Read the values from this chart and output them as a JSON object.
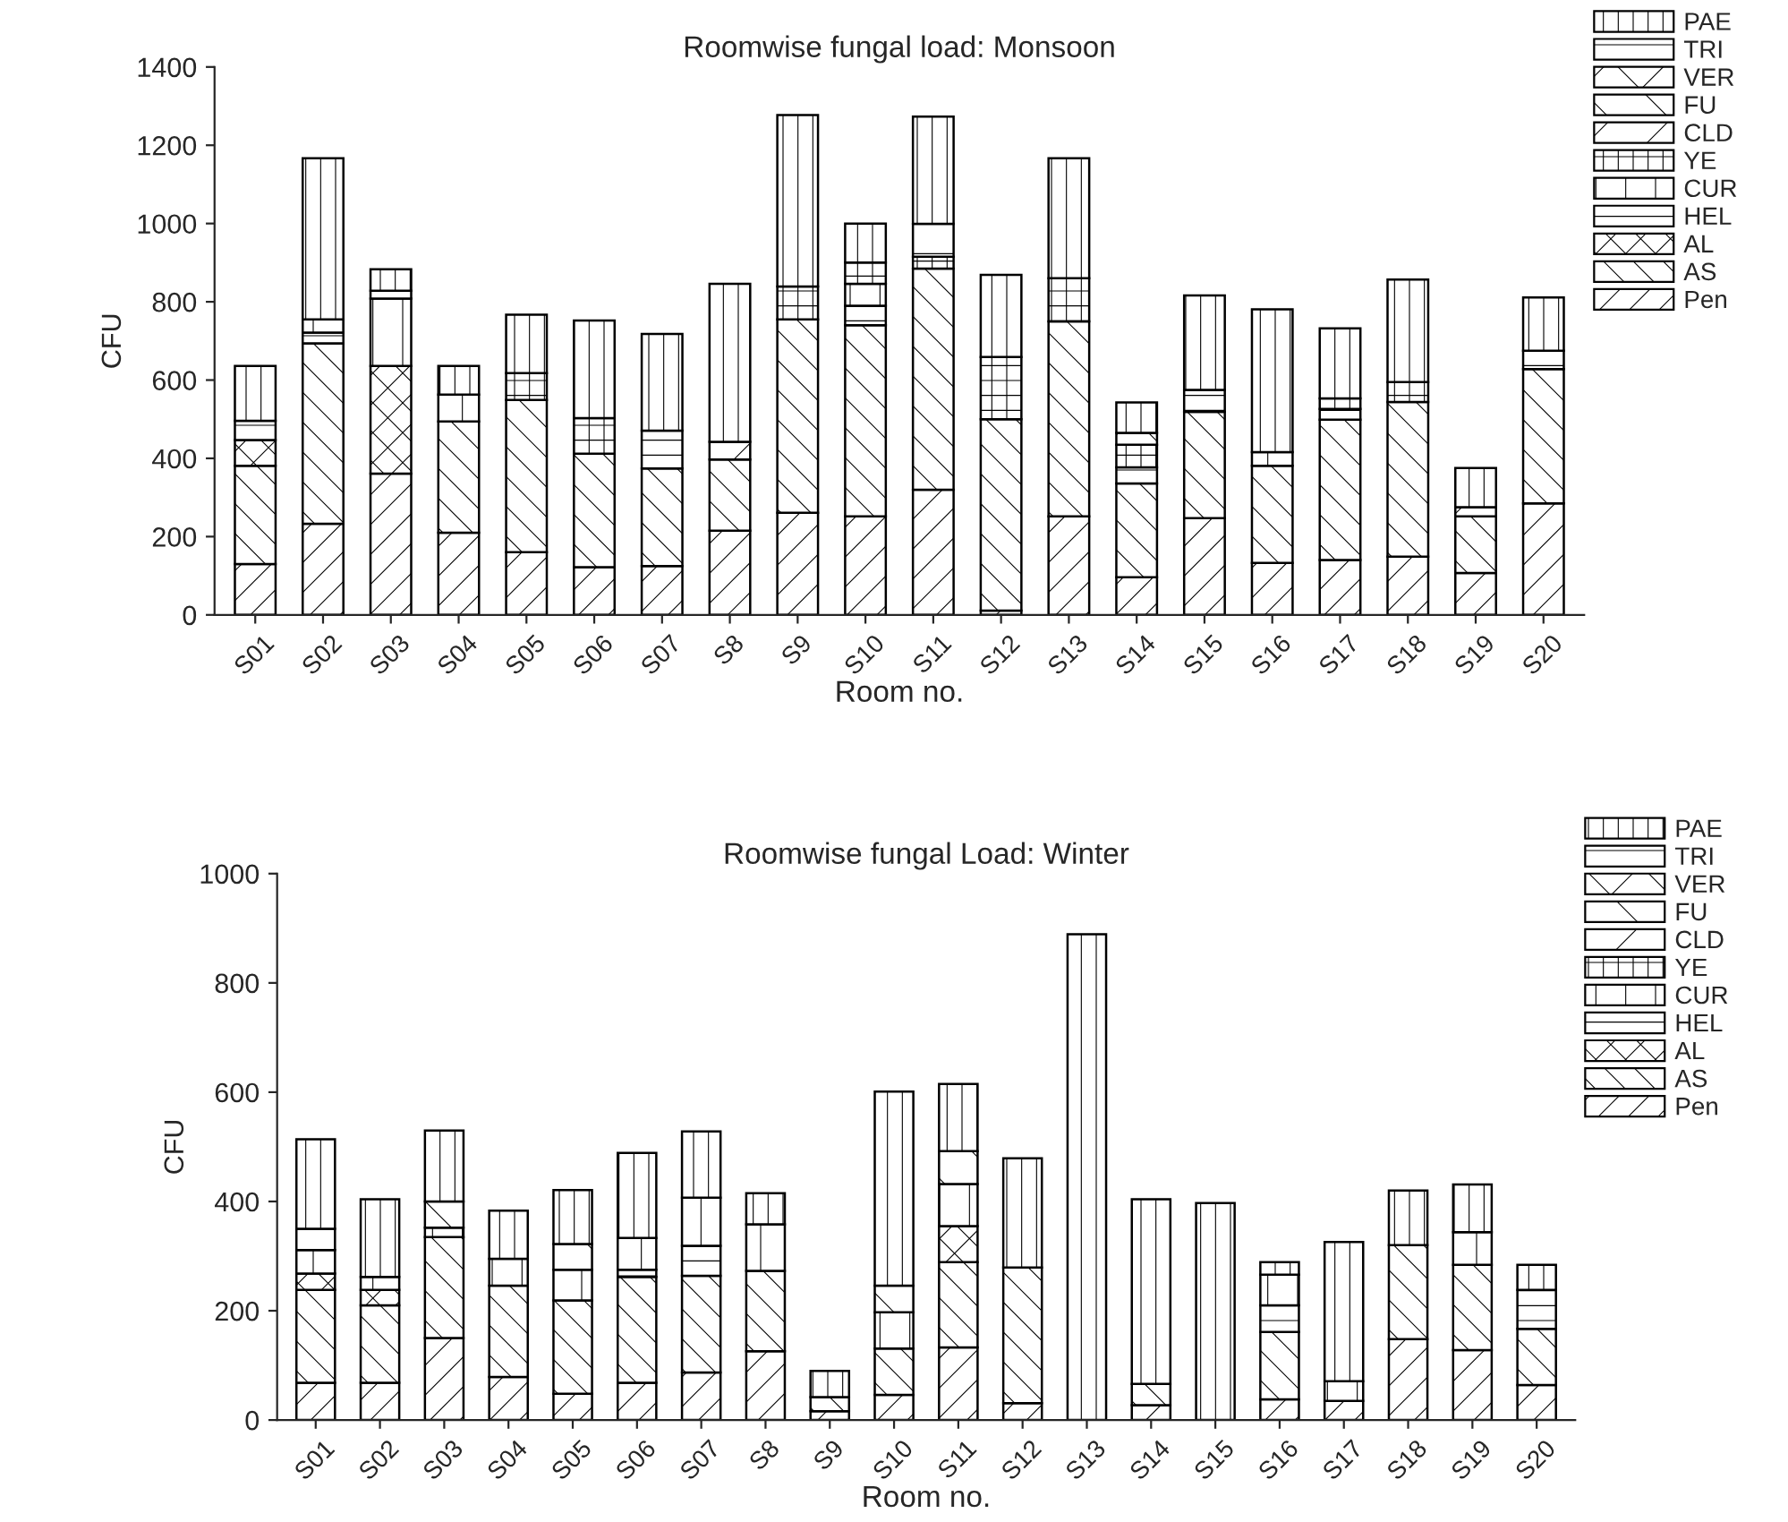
{
  "chart_data": [
    {
      "type": "bar",
      "stacked": true,
      "title": "Roomwise fungal load: Monsoon",
      "xlabel": "Room no.",
      "ylabel": "CFU",
      "legend": "top right",
      "grid": false,
      "categories": [
        "S01",
        "S02",
        "S03",
        "S04",
        "S05",
        "S06",
        "S07",
        "S8",
        "S9",
        "S10",
        "S11",
        "S12",
        "S13",
        "S14",
        "S15",
        "S16",
        "S17",
        "S18",
        "S19",
        "S20"
      ],
      "ylim": [
        0,
        1400
      ],
      "yticks": [
        0,
        200,
        400,
        600,
        800,
        1000,
        1200,
        1400
      ],
      "series": [
        {
          "name": "Pen",
          "color": "#000000",
          "values": [
            130,
            233,
            361,
            210,
            160,
            122,
            125,
            215,
            261,
            252,
            320,
            11,
            252,
            96,
            247,
            133,
            140,
            149,
            107,
            285
          ]
        },
        {
          "name": "AS",
          "color": "#000000",
          "values": [
            251,
            461,
            null,
            284,
            389,
            290,
            249,
            182,
            494,
            488,
            565,
            489,
            498,
            240,
            272,
            248,
            359,
            395,
            145,
            343
          ]
        },
        {
          "name": "AL",
          "color": "#000000",
          "values": [
            66,
            null,
            275,
            null,
            null,
            null,
            null,
            null,
            null,
            null,
            null,
            null,
            null,
            null,
            null,
            null,
            null,
            null,
            null,
            null
          ]
        },
        {
          "name": "HEL",
          "color": "#000000",
          "values": [
            49,
            27,
            null,
            null,
            null,
            null,
            97,
            null,
            null,
            50,
            null,
            null,
            null,
            41,
            56,
            null,
            27,
            null,
            null,
            47
          ]
        },
        {
          "name": "CUR",
          "color": "#000000",
          "values": [
            null,
            34,
            172,
            69,
            null,
            null,
            null,
            null,
            null,
            56,
            null,
            null,
            null,
            null,
            null,
            35,
            null,
            null,
            null,
            null
          ]
        },
        {
          "name": "YE",
          "color": "#000000",
          "values": [
            null,
            null,
            null,
            null,
            69,
            91,
            null,
            null,
            84,
            54,
            30,
            159,
            110,
            58,
            null,
            null,
            27,
            51,
            null,
            null
          ]
        },
        {
          "name": "CLD",
          "color": "#000000",
          "values": [
            null,
            null,
            null,
            null,
            null,
            null,
            null,
            45,
            null,
            null,
            null,
            null,
            null,
            null,
            null,
            null,
            null,
            null,
            23,
            null
          ]
        },
        {
          "name": "FU",
          "color": "#000000",
          "values": [
            null,
            null,
            null,
            null,
            null,
            null,
            null,
            null,
            null,
            null,
            null,
            null,
            null,
            null,
            null,
            null,
            null,
            null,
            null,
            null
          ]
        },
        {
          "name": "VER",
          "color": "#000000",
          "values": [
            null,
            null,
            null,
            null,
            null,
            null,
            null,
            null,
            null,
            null,
            null,
            null,
            null,
            30,
            null,
            null,
            null,
            null,
            null,
            null
          ]
        },
        {
          "name": "TRI",
          "color": "#000000",
          "values": [
            null,
            null,
            20,
            null,
            null,
            null,
            null,
            null,
            null,
            null,
            84,
            null,
            null,
            null,
            null,
            null,
            null,
            null,
            null,
            null
          ]
        },
        {
          "name": "PAE",
          "color": "#000000",
          "values": [
            140,
            412,
            55,
            73,
            149,
            249,
            247,
            404,
            438,
            100,
            274,
            210,
            307,
            78,
            241,
            365,
            179,
            262,
            100,
            136
          ]
        }
      ]
    },
    {
      "type": "bar",
      "stacked": true,
      "title": "Roomwise fungal Load: Winter",
      "xlabel": "Room no.",
      "ylabel": "CFU",
      "legend": "top right",
      "grid": false,
      "categories": [
        "S01",
        "S02",
        "S03",
        "S04",
        "S05",
        "S06",
        "S07",
        "S8",
        "S9",
        "S10",
        "S11",
        "S12",
        "S13",
        "S14",
        "S15",
        "S16",
        "S17",
        "S18",
        "S19",
        "S20"
      ],
      "ylim": [
        0,
        1000
      ],
      "yticks": [
        0,
        200,
        400,
        600,
        800,
        1000
      ],
      "series": [
        {
          "name": "Pen",
          "color": "#000000",
          "values": [
            68,
            68,
            150,
            79,
            48,
            68,
            87,
            126,
            16,
            46,
            133,
            31,
            null,
            27,
            null,
            38,
            35,
            148,
            128,
            64
          ]
        },
        {
          "name": "AS",
          "color": "#000000",
          "values": [
            170,
            142,
            185,
            167,
            171,
            194,
            177,
            147,
            26,
            85,
            156,
            248,
            null,
            39,
            null,
            123,
            null,
            172,
            156,
            103
          ]
        },
        {
          "name": "AL",
          "color": "#000000",
          "values": [
            30,
            28,
            null,
            null,
            null,
            null,
            null,
            null,
            null,
            null,
            66,
            null,
            null,
            null,
            null,
            null,
            null,
            null,
            null,
            null
          ]
        },
        {
          "name": "HEL",
          "color": "#000000",
          "values": [
            null,
            null,
            null,
            null,
            null,
            13,
            55,
            null,
            null,
            null,
            null,
            null,
            null,
            null,
            null,
            49,
            null,
            null,
            null,
            71
          ]
        },
        {
          "name": "CUR",
          "color": "#000000",
          "values": [
            43,
            24,
            17,
            49,
            56,
            58,
            88,
            85,
            null,
            66,
            77,
            null,
            null,
            null,
            null,
            56,
            36,
            null,
            60,
            null
          ]
        },
        {
          "name": "YE",
          "color": "#000000",
          "values": [
            null,
            null,
            null,
            null,
            null,
            null,
            null,
            null,
            null,
            null,
            null,
            null,
            null,
            null,
            null,
            null,
            null,
            null,
            null,
            null
          ]
        },
        {
          "name": "CLD",
          "color": "#000000",
          "values": [
            null,
            null,
            null,
            null,
            null,
            null,
            null,
            null,
            null,
            null,
            null,
            null,
            null,
            null,
            null,
            null,
            null,
            null,
            null,
            null
          ]
        },
        {
          "name": "FU",
          "color": "#000000",
          "values": [
            39,
            null,
            48,
            null,
            47,
            null,
            null,
            null,
            null,
            49,
            60,
            null,
            null,
            null,
            null,
            null,
            null,
            null,
            null,
            null
          ]
        },
        {
          "name": "VER",
          "color": "#000000",
          "values": [
            null,
            null,
            null,
            null,
            null,
            null,
            null,
            null,
            null,
            null,
            null,
            null,
            null,
            null,
            null,
            null,
            null,
            null,
            null,
            null
          ]
        },
        {
          "name": "TRI",
          "color": "#000000",
          "values": [
            null,
            null,
            null,
            null,
            null,
            null,
            null,
            null,
            null,
            null,
            null,
            null,
            null,
            null,
            null,
            null,
            null,
            null,
            null,
            null
          ]
        },
        {
          "name": "PAE",
          "color": "#000000",
          "values": [
            164,
            142,
            130,
            88,
            99,
            156,
            121,
            57,
            48,
            355,
            123,
            200,
            889,
            338,
            397,
            23,
            255,
            100,
            87,
            46
          ]
        }
      ]
    }
  ]
}
